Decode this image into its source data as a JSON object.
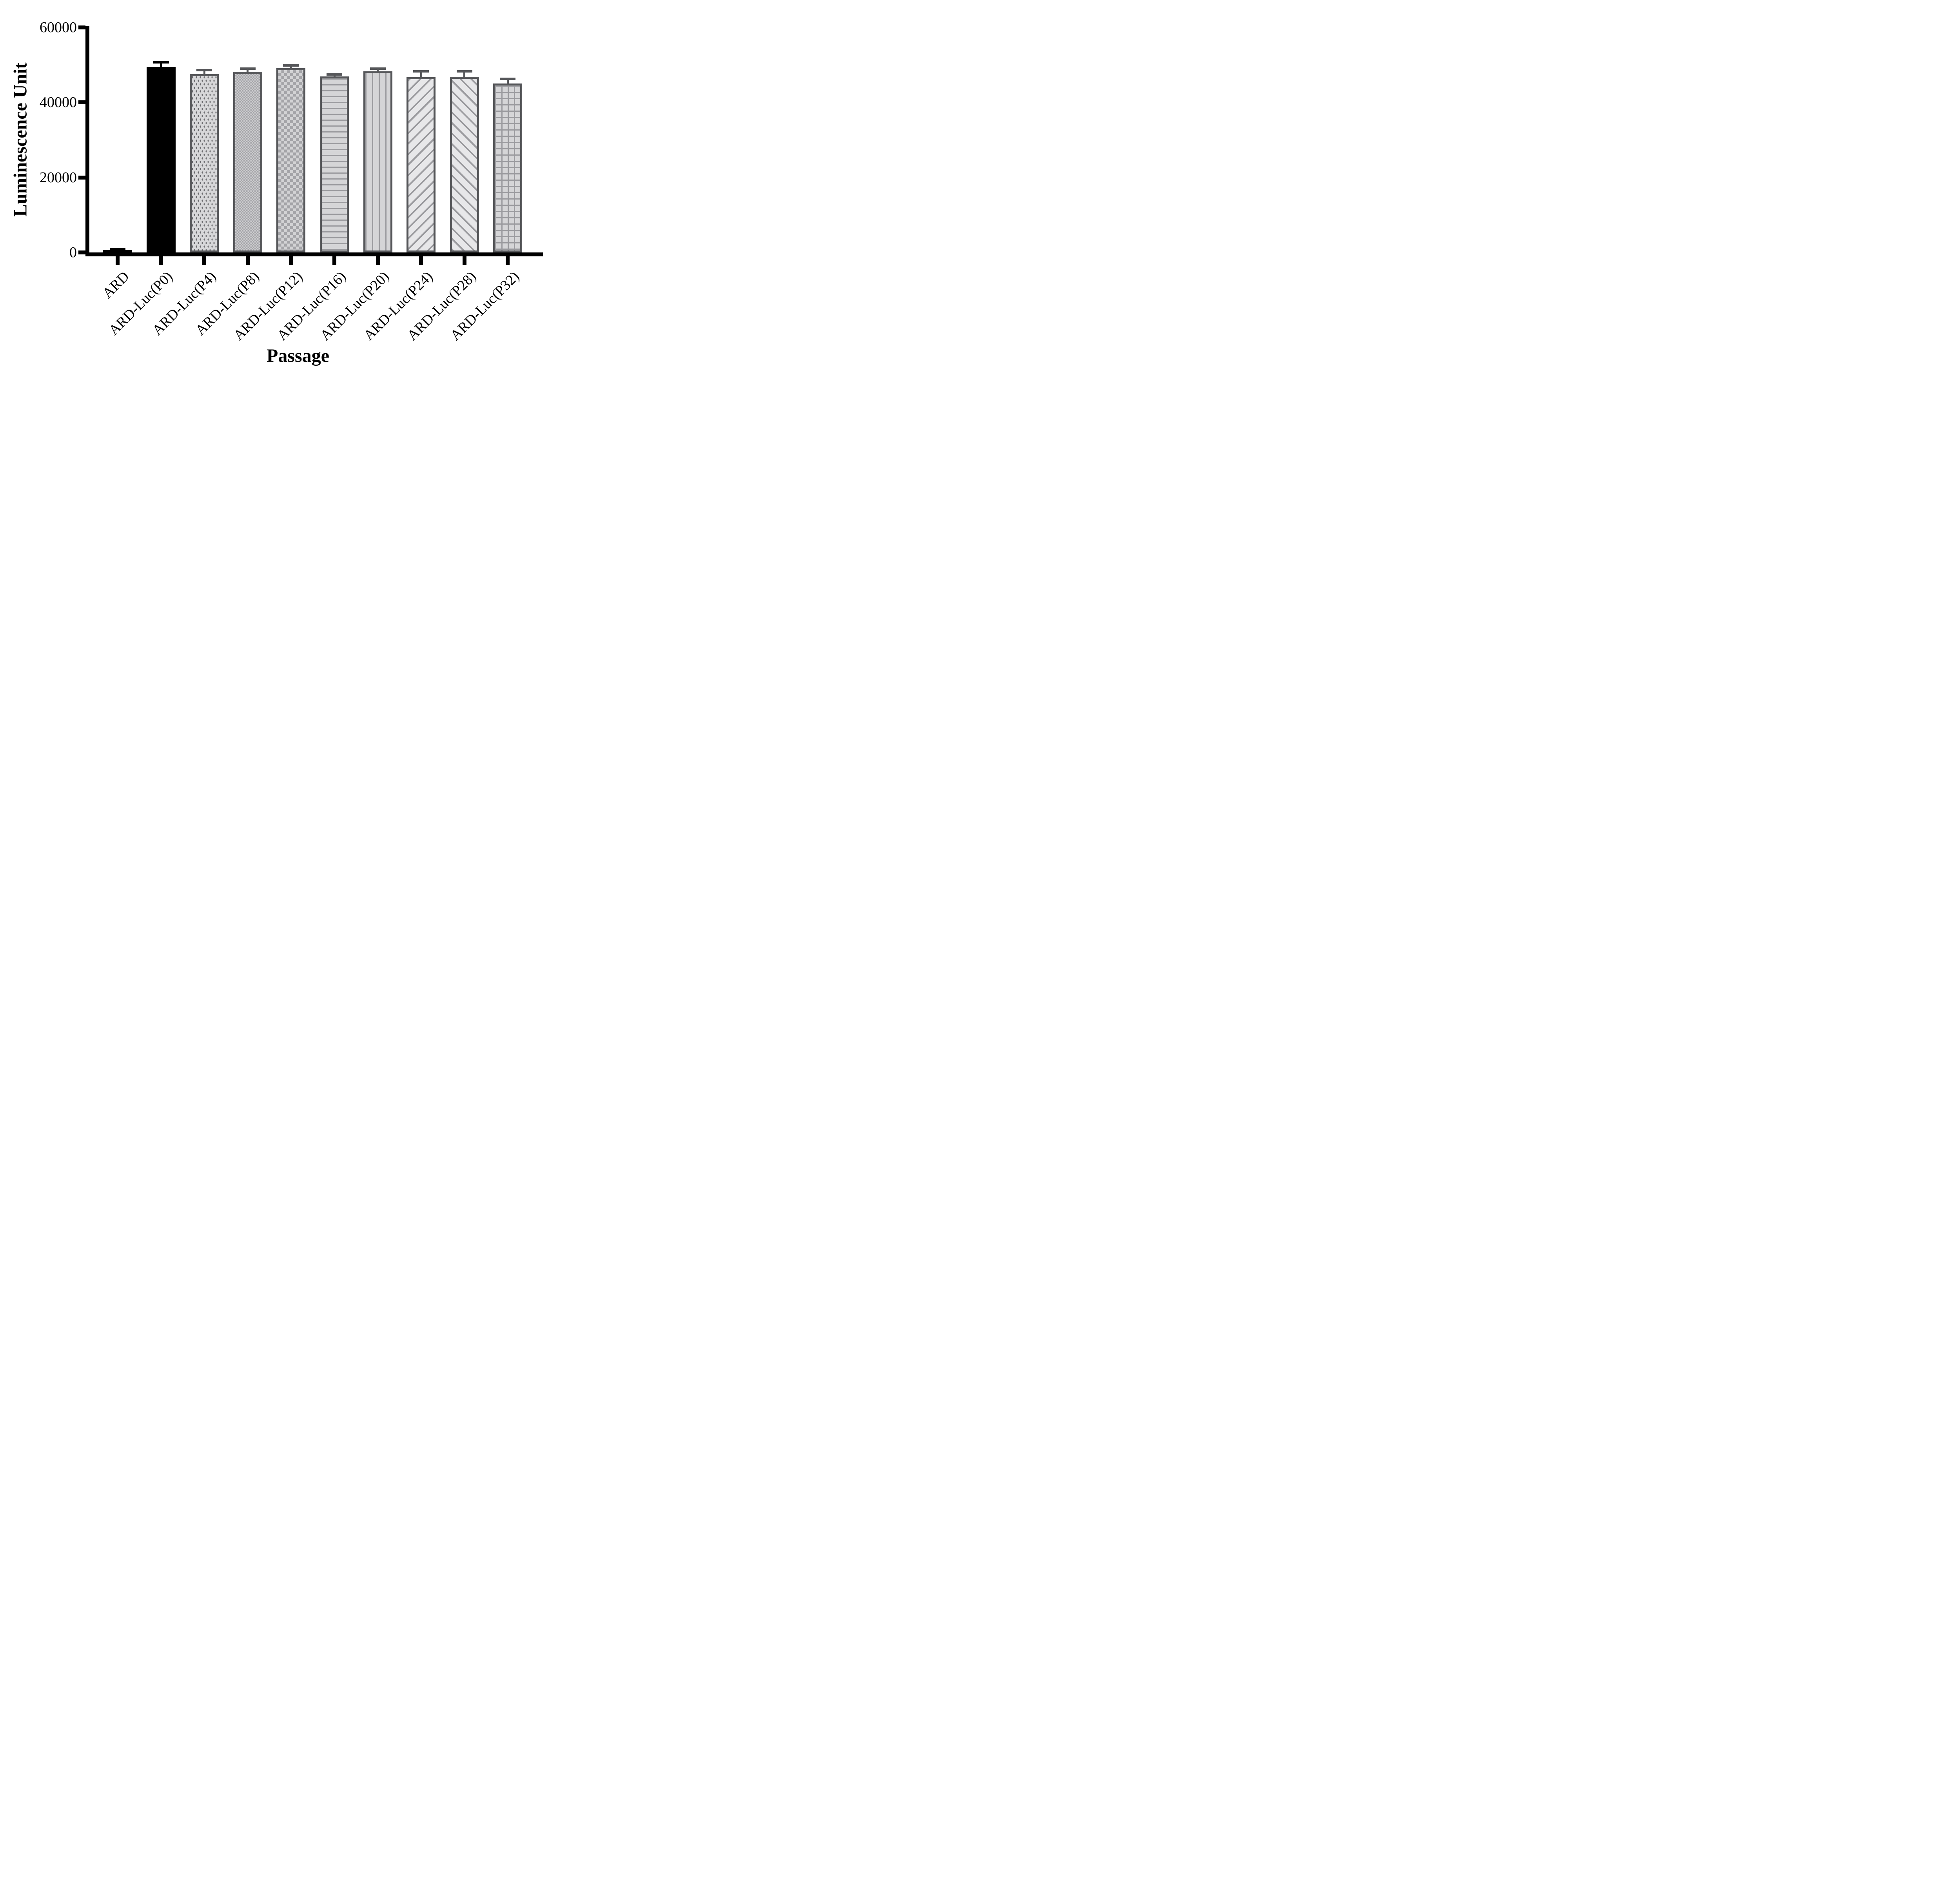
{
  "chart_data": {
    "type": "bar",
    "title": "",
    "xlabel": "Passage",
    "ylabel": "Luminescence Unit",
    "ylim": [
      0,
      60000
    ],
    "yticks": [
      0,
      20000,
      40000,
      60000
    ],
    "grid": false,
    "legend": "none",
    "categories": [
      "ARD",
      "ARD-Luc(P0)",
      "ARD-Luc(P4)",
      "ARD-Luc(P8)",
      "ARD-Luc(P12)",
      "ARD-Luc(P16)",
      "ARD-Luc(P20)",
      "ARD-Luc(P24)",
      "ARD-Luc(P28)",
      "ARD-Luc(P32)"
    ],
    "values": [
      600,
      49400,
      47600,
      48200,
      49100,
      46900,
      48300,
      46700,
      46800,
      45100
    ],
    "errors": [
      250,
      1200,
      850,
      700,
      700,
      400,
      600,
      1500,
      1400,
      1100
    ],
    "patterns": [
      "solid-black",
      "solid-black",
      "dots",
      "checker-fine",
      "checker-coarse",
      "h-lines",
      "v-lines",
      "diag-forward",
      "diag-back",
      "grid"
    ],
    "error_bar_style": "cap-top-only",
    "colors": {
      "solid_bar": "#000000",
      "pattern_fill": "#d5d5d7",
      "pattern_line": "#9a9a9e",
      "pattern_border": "#56575a",
      "error_bar_patterned": "#56575a",
      "error_bar_solid": "#000000",
      "axis": "#000000",
      "background": "#ffffff"
    }
  }
}
